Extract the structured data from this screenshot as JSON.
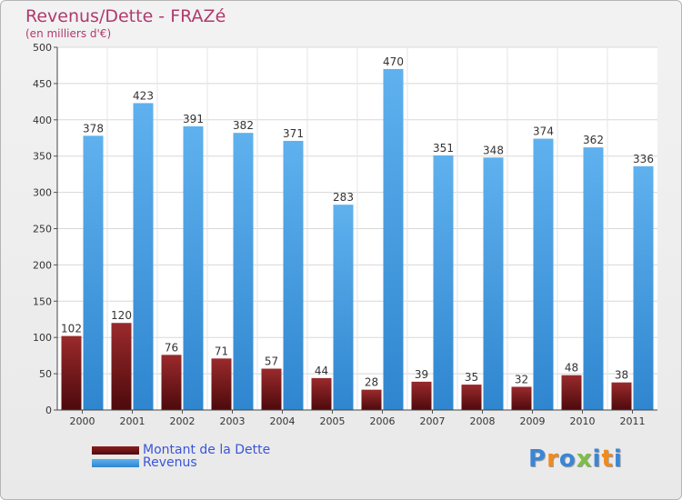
{
  "title": "Revenus/Dette - FRAZé",
  "subtitle": "(en milliers d'€)",
  "chart_data": {
    "type": "bar",
    "categories": [
      "2000",
      "2001",
      "2002",
      "2003",
      "2004",
      "2005",
      "2006",
      "2007",
      "2008",
      "2009",
      "2010",
      "2011"
    ],
    "series": [
      {
        "name": "Montant de la Dette",
        "color": "#7a1418",
        "values": [
          102,
          120,
          76,
          71,
          57,
          44,
          28,
          39,
          35,
          32,
          48,
          38
        ]
      },
      {
        "name": "Revenus",
        "color": "#4aa0e2",
        "values": [
          378,
          423,
          391,
          382,
          371,
          283,
          470,
          351,
          348,
          374,
          362,
          336
        ]
      }
    ],
    "ylim": [
      0,
      500
    ],
    "yticks": [
      0,
      50,
      100,
      150,
      200,
      250,
      300,
      350,
      400,
      450,
      500
    ],
    "grid": true,
    "legend_position": "bottom-left",
    "value_labels": true
  },
  "logo": {
    "text": "Proxiti",
    "letters": [
      {
        "ch": "P",
        "color": "#3a86d6"
      },
      {
        "ch": "r",
        "color": "#f08a1c"
      },
      {
        "ch": "o",
        "color": "#3a86d6"
      },
      {
        "ch": "x",
        "color": "#7cc043"
      },
      {
        "ch": "i",
        "color": "#3a86d6"
      },
      {
        "ch": "t",
        "color": "#f08a1c"
      },
      {
        "ch": "i",
        "color": "#3a86d6"
      }
    ]
  }
}
